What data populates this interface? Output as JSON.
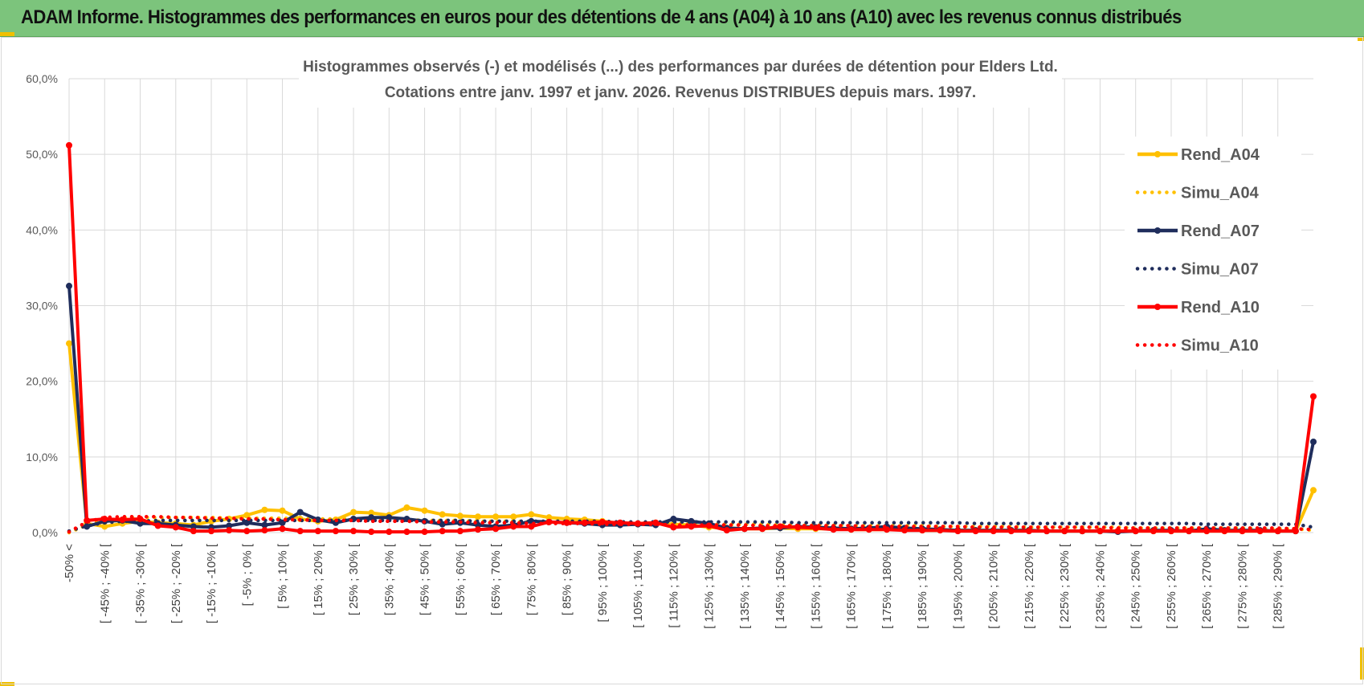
{
  "header": {
    "title": "ADAM Informe. Histogrammes des performances en euros pour des détentions de 4 ans (A04) à 10 ans (A10) avec les revenus connus distribués"
  },
  "chart_data": {
    "type": "line",
    "title": "Histogrammes observés (-) et modélisés (...) des performances par durées de détention pour Elders Ltd.",
    "subtitle": "Cotations entre janv. 1997 et janv. 2026. Revenus DISTRIBUES depuis mars. 1997.",
    "xlabel": "",
    "ylabel": "",
    "ylim": [
      0,
      60
    ],
    "ytick_values": [
      0,
      10,
      20,
      30,
      40,
      50,
      60
    ],
    "ytick_labels": [
      "0,0%",
      "10,0%",
      "20,0%",
      "30,0%",
      "40,0%",
      "50,0%",
      "60,0%"
    ],
    "grid": true,
    "legend_position": "right",
    "categories": [
      "-50% <",
      "[ -50% ; -45% [",
      "[ -45% ; -40% [",
      "[ -40% ; -35% [",
      "[ -35% ; -30% [",
      "[ -30% ; -25% [",
      "[ -25% ; -20% [",
      "[ -20% ; -15% [",
      "[ -15% ; -10% [",
      "[ -10% ; -5% [",
      "[ -5% ; 0% [",
      "[ 0% ; 5% [",
      "[ 5% ; 10% [",
      "[ 10% ; 15% [",
      "[ 15% ; 20% [",
      "[ 20% ; 25% [",
      "[ 25% ; 30% [",
      "[ 30% ; 35% [",
      "[ 35% ; 40% [",
      "[ 40% ; 45% [",
      "[ 45% ; 50% [",
      "[ 50% ; 55% [",
      "[ 55% ; 60% [",
      "[ 60% ; 65% [",
      "[ 65% ; 70% [",
      "[ 70% ; 75% [",
      "[ 75% ; 80% [",
      "[ 80% ; 85% [",
      "[ 85% ; 90% [",
      "[ 90% ; 95% [",
      "[ 95% ; 100% [",
      "[ 100% ; 105% [",
      "[ 105% ; 110% [",
      "[ 110% ; 115% [",
      "[ 115% ; 120% [",
      "[ 120% ; 125% [",
      "[ 125% ; 130% [",
      "[ 130% ; 135% [",
      "[ 135% ; 140% [",
      "[ 140% ; 145% [",
      "[ 145% ; 150% [",
      "[ 150% ; 155% [",
      "[ 155% ; 160% [",
      "[ 160% ; 165% [",
      "[ 165% ; 170% [",
      "[ 170% ; 175% [",
      "[ 175% ; 180% [",
      "[ 180% ; 185% [",
      "[ 185% ; 190% [",
      "[ 190% ; 195% [",
      "[ 195% ; 200% [",
      "[ 200% ; 205% [",
      "[ 205% ; 210% [",
      "[ 210% ; 215% [",
      "[ 215% ; 220% [",
      "[ 220% ; 225% [",
      "[ 225% ; 230% [",
      "[ 230% ; 235% [",
      "[ 235% ; 240% [",
      "[ 240% ; 245% [",
      "[ 245% ; 250% [",
      "[ 250% ; 255% [",
      "[ 255% ; 260% [",
      "[ 260% ; 265% [",
      "[ 265% ; 270% [",
      "[ 270% ; 275% [",
      "[ 275% ; 280% [",
      "[ 280% ; 285% [",
      "[ 285% ; 290% [",
      "[ 290% ; 295% [",
      "295% <"
    ],
    "visible_tick_labels": [
      "-50% <",
      "[ -45% ; -40% [",
      "[ -35% ; -30% [",
      "[ -25% ; -20% [",
      "[ -15% ; -10% [",
      "[ -5% ; 0% [",
      "[ 5% ; 10% [",
      "[ 15% ; 20% [",
      "[ 25% ; 30% [",
      "[ 35% ; 40% [",
      "[ 45% ; 50% [",
      "[ 55% ; 60% [",
      "[ 65% ; 70% [",
      "[ 75% ; 80% [",
      "[ 85% ; 90% [",
      "[ 95% ; 100% [",
      "[ 105% ; 110% [",
      "[ 115% ; 120% [",
      "[ 125% ; 130% [",
      "[ 135% ; 140% [",
      "[ 145% ; 150% [",
      "[ 155% ; 160% [",
      "[ 165% ; 170% [",
      "[ 175% ; 180% [",
      "[ 185% ; 190% [",
      "[ 195% ; 200% [",
      "[ 205% ; 210% [",
      "[ 215% ; 220% [",
      "[ 225% ; 230% [",
      "[ 235% ; 240% [",
      "[ 245% ; 250% [",
      "[ 255% ; 260% [",
      "[ 265% ; 270% [",
      "[ 275% ; 280% [",
      "[ 285% ; 290% ["
    ],
    "series": [
      {
        "name": "Rend_A04",
        "color": "#ffc000",
        "style": "solid",
        "markers": true,
        "values": [
          25.0,
          1.2,
          0.8,
          1.2,
          1.5,
          1.3,
          1.2,
          1.0,
          1.5,
          1.8,
          2.3,
          3.0,
          2.9,
          1.8,
          1.5,
          1.7,
          2.7,
          2.6,
          2.3,
          3.3,
          2.9,
          2.4,
          2.2,
          2.1,
          2.1,
          2.1,
          2.4,
          2.0,
          1.8,
          1.7,
          1.5,
          1.2,
          1.2,
          1.3,
          1.1,
          1.0,
          0.7,
          0.6,
          0.5,
          0.5,
          0.6,
          0.5,
          0.5,
          0.5,
          0.4,
          0.4,
          0.4,
          0.4,
          0.3,
          0.3,
          0.3,
          0.3,
          0.3,
          0.3,
          0.3,
          0.2,
          0.2,
          0.2,
          0.2,
          0.2,
          0.2,
          0.2,
          0.2,
          0.2,
          0.2,
          0.2,
          0.2,
          0.2,
          0.2,
          0.2,
          5.6
        ]
      },
      {
        "name": "Simu_A04",
        "color": "#ffc000",
        "style": "dotted",
        "markers": false,
        "values": [
          0.0,
          1.0,
          1.6,
          1.9,
          2.0,
          2.0,
          2.0,
          2.0,
          2.0,
          1.9,
          1.9,
          1.9,
          1.9,
          1.8,
          1.8,
          1.8,
          1.8,
          1.7,
          1.7,
          1.7,
          1.6,
          1.6,
          1.6,
          1.5,
          1.5,
          1.5,
          1.4,
          1.4,
          1.4,
          1.3,
          1.3,
          1.3,
          1.3,
          1.2,
          1.2,
          1.2,
          1.1,
          1.1,
          1.1,
          1.1,
          1.0,
          1.0,
          1.0,
          1.0,
          0.9,
          0.9,
          0.9,
          0.9,
          0.9,
          0.8,
          0.8,
          0.8,
          0.8,
          0.8,
          0.7,
          0.7,
          0.7,
          0.7,
          0.7,
          0.7,
          0.6,
          0.6,
          0.6,
          0.6,
          0.6,
          0.6,
          0.6,
          0.5,
          0.5,
          0.5,
          0.3
        ]
      },
      {
        "name": "Rend_A07",
        "color": "#1f2d5c",
        "style": "solid",
        "markers": true,
        "values": [
          32.6,
          0.8,
          1.5,
          1.6,
          1.2,
          1.2,
          1.0,
          0.8,
          0.7,
          0.9,
          1.3,
          1.0,
          1.3,
          2.7,
          1.7,
          1.3,
          1.8,
          2.0,
          2.0,
          1.8,
          1.5,
          1.1,
          1.3,
          1.0,
          0.8,
          1.0,
          1.5,
          1.4,
          1.3,
          1.2,
          1.0,
          1.0,
          1.1,
          1.0,
          1.8,
          1.5,
          1.2,
          0.6,
          0.5,
          0.6,
          0.6,
          0.8,
          0.7,
          0.6,
          0.5,
          0.6,
          0.8,
          0.6,
          0.5,
          0.4,
          0.3,
          0.3,
          0.3,
          0.3,
          0.3,
          0.2,
          0.2,
          0.2,
          0.2,
          0.1,
          0.2,
          0.3,
          0.3,
          0.2,
          0.5,
          0.3,
          0.3,
          0.3,
          0.2,
          0.2,
          12.0
        ]
      },
      {
        "name": "Simu_A07",
        "color": "#1f2d5c",
        "style": "dotted",
        "markers": false,
        "values": [
          0.2,
          0.9,
          1.3,
          1.5,
          1.5,
          1.6,
          1.6,
          1.6,
          1.6,
          1.6,
          1.6,
          1.6,
          1.6,
          1.6,
          1.6,
          1.6,
          1.6,
          1.6,
          1.6,
          1.6,
          1.6,
          1.6,
          1.6,
          1.5,
          1.5,
          1.5,
          1.5,
          1.5,
          1.5,
          1.5,
          1.5,
          1.4,
          1.4,
          1.4,
          1.4,
          1.4,
          1.4,
          1.4,
          1.4,
          1.4,
          1.4,
          1.3,
          1.3,
          1.3,
          1.3,
          1.3,
          1.3,
          1.3,
          1.3,
          1.3,
          1.3,
          1.2,
          1.2,
          1.2,
          1.2,
          1.2,
          1.2,
          1.2,
          1.2,
          1.2,
          1.2,
          1.2,
          1.2,
          1.2,
          1.1,
          1.1,
          1.1,
          1.1,
          1.1,
          1.1,
          0.7
        ]
      },
      {
        "name": "Rend_A10",
        "color": "#ff0000",
        "style": "solid",
        "markers": true,
        "values": [
          51.2,
          1.6,
          1.8,
          1.7,
          1.8,
          0.9,
          0.7,
          0.2,
          0.2,
          0.3,
          0.2,
          0.3,
          0.5,
          0.2,
          0.2,
          0.2,
          0.2,
          0.1,
          0.1,
          0.1,
          0.1,
          0.2,
          0.2,
          0.4,
          0.5,
          0.8,
          0.8,
          1.4,
          1.3,
          1.3,
          1.4,
          1.3,
          1.2,
          1.3,
          0.7,
          0.8,
          0.9,
          0.3,
          0.5,
          0.5,
          0.8,
          0.7,
          0.6,
          0.4,
          0.4,
          0.4,
          0.4,
          0.3,
          0.3,
          0.3,
          0.2,
          0.2,
          0.2,
          0.2,
          0.2,
          0.2,
          0.2,
          0.2,
          0.2,
          0.2,
          0.2,
          0.2,
          0.2,
          0.2,
          0.2,
          0.2,
          0.2,
          0.2,
          0.2,
          0.2,
          18.0
        ]
      },
      {
        "name": "Simu_A10",
        "color": "#ff0000",
        "style": "dotted",
        "markers": false,
        "values": [
          0.1,
          1.4,
          2.0,
          2.1,
          2.1,
          2.1,
          2.0,
          2.0,
          1.9,
          1.9,
          1.8,
          1.8,
          1.7,
          1.7,
          1.6,
          1.6,
          1.6,
          1.5,
          1.5,
          1.5,
          1.4,
          1.4,
          1.4,
          1.3,
          1.3,
          1.3,
          1.2,
          1.2,
          1.2,
          1.2,
          1.1,
          1.1,
          1.1,
          1.1,
          1.0,
          1.0,
          1.0,
          1.0,
          1.0,
          0.9,
          0.9,
          0.9,
          0.9,
          0.9,
          0.9,
          0.8,
          0.8,
          0.8,
          0.8,
          0.8,
          0.8,
          0.7,
          0.7,
          0.7,
          0.7,
          0.7,
          0.7,
          0.7,
          0.7,
          0.6,
          0.6,
          0.6,
          0.6,
          0.6,
          0.6,
          0.6,
          0.6,
          0.6,
          0.6,
          0.5,
          0.4
        ]
      }
    ]
  }
}
